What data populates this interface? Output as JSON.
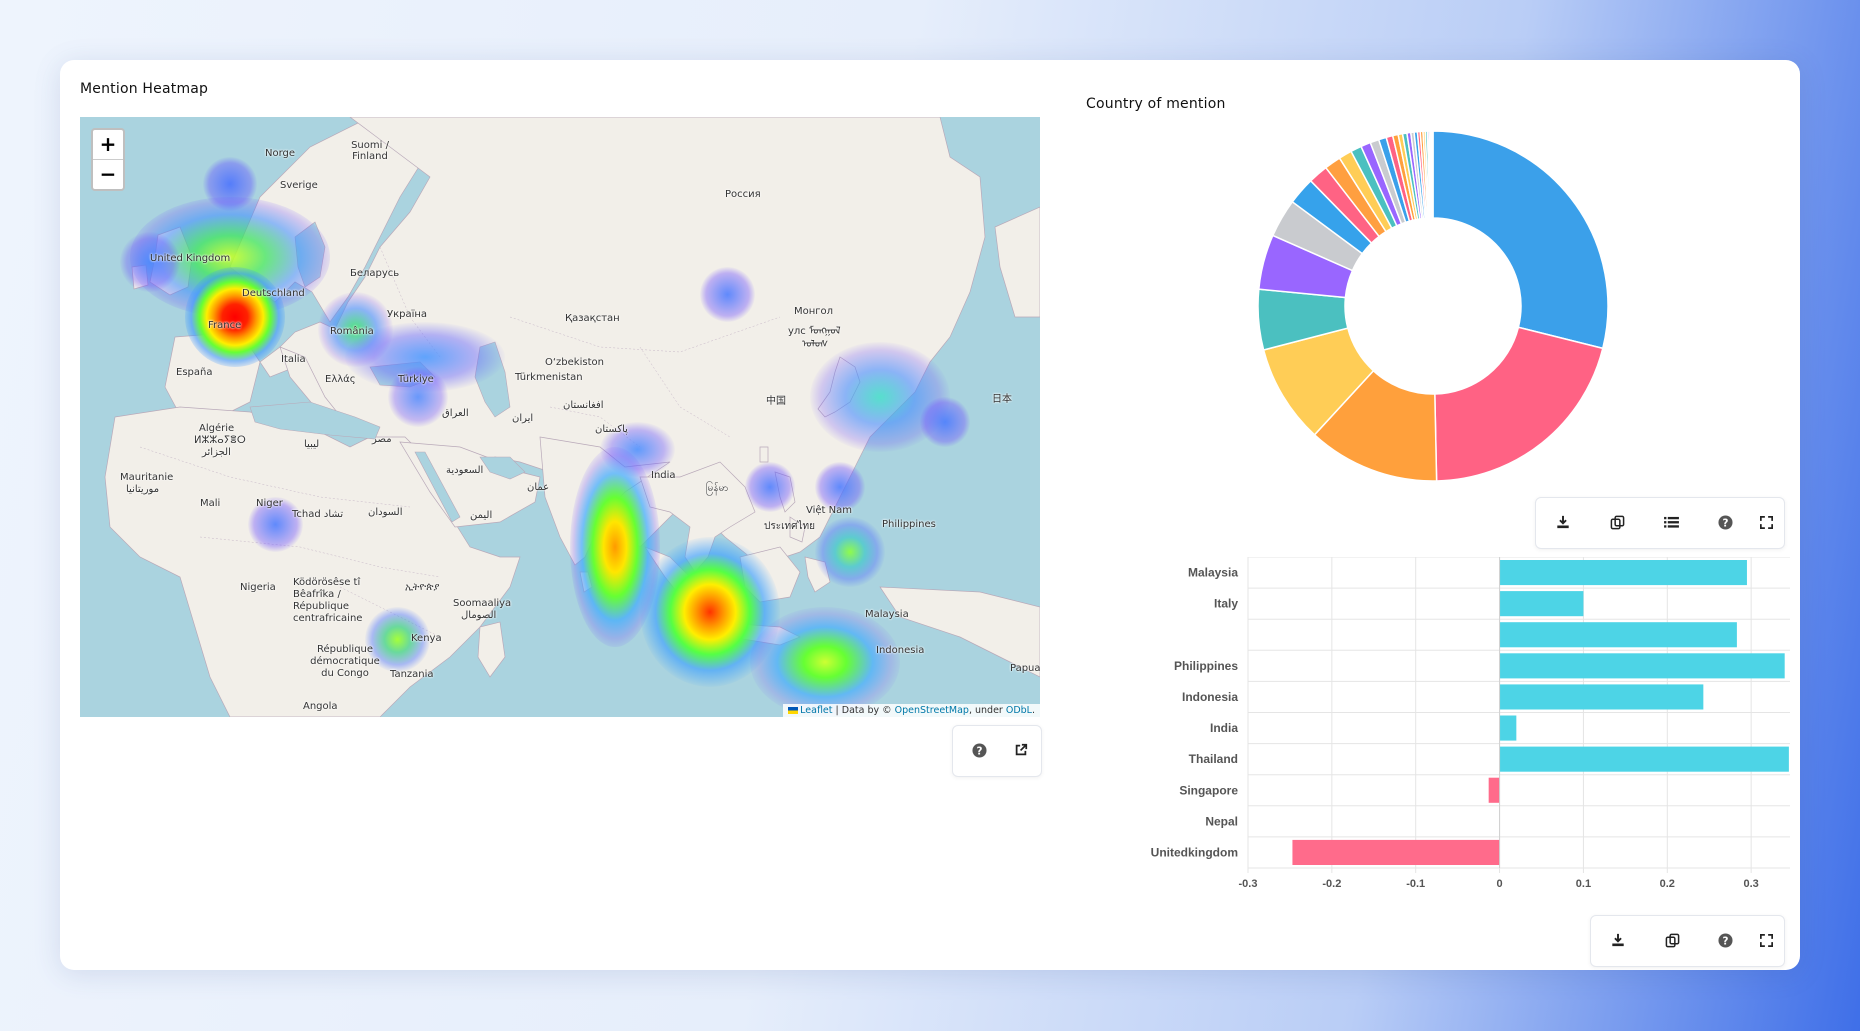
{
  "heatmap": {
    "title": "Mention Heatmap",
    "zoom_in_label": "+",
    "zoom_out_label": "−",
    "attribution": {
      "leaflet": "Leaflet",
      "data_by": " | Data by © ",
      "osm": "OpenStreetMap",
      "under": ", under ",
      "odbl": "ODbL",
      "end": "."
    },
    "place_labels": [
      "Norge",
      "Suomi / Finland",
      "Sverige",
      "Россия",
      "United Kingdom",
      "Беларусь",
      "Deutschland",
      "Україна",
      "France",
      "România",
      "Қазақстан",
      "Монгол",
      "улс ᠮᠣᠩᠭᠣᠯ",
      "ᠤᠯᠤᠰ",
      "España",
      "Italia",
      "Türkiye",
      "Ελλάς",
      "O‘zbekiston",
      "Türkmenistan",
      "中国",
      "日本",
      "Algérie",
      "ⵍⵣⵣⴰⵢⴻⵔ",
      "الجزائر",
      "ليبيا",
      "مصر",
      "العراق",
      "ایران",
      "افغانستان",
      "پاکستان",
      "India",
      "မြန်မာ",
      "Việt Nam",
      "Mauritanie",
      "موريتانيا",
      "Mali",
      "Niger",
      "Tchad تشاد",
      "السودان",
      "السعودية",
      "عمان",
      "اليمن",
      "Philippines",
      "ประเทศไทย",
      "Malaysia",
      "Indonesia",
      "Nigeria",
      "Ködörösêse tî Bêafrîka / République centrafricaine",
      "ኢትዮጵያ",
      "Soomaaliya",
      "الصومال",
      "Kenya",
      "République démocratique du Congo",
      "Tanzania",
      "Papua",
      "Angola"
    ]
  },
  "donut": {
    "title": "Country of mention",
    "colors": [
      "#3ba0ea",
      "#ff6284",
      "#ffa03c",
      "#ffcd56",
      "#4bc0c0",
      "#9966ff",
      "#c9cbcf",
      "#36a2eb",
      "#ff6384",
      "#ff9f40",
      "#ffcd56",
      "#4bc0c0",
      "#9966ff",
      "#c9cbcf"
    ]
  },
  "chart_data": [
    {
      "type": "pie",
      "title": "Country of mention",
      "values": [
        28.5,
        20.5,
        12,
        9,
        5.5,
        5,
        3.5,
        2.5,
        1.8,
        1.5,
        1.2,
        1.0,
        0.9,
        0.8,
        0.7,
        0.6,
        0.5,
        0.4,
        0.4,
        0.35,
        0.3,
        0.3,
        0.25,
        0.25,
        0.2,
        0.2,
        0.15,
        0.15,
        0.1,
        0.1
      ]
    },
    {
      "type": "bar",
      "orientation": "horizontal",
      "categories": [
        "Malaysia",
        "Italy",
        "",
        "Philippines",
        "Indonesia",
        "India",
        "Thailand",
        "Singapore",
        "Nepal",
        "Unitedkingdom"
      ],
      "values": [
        0.295,
        0.1,
        0.283,
        0.34,
        0.243,
        0.02,
        0.345,
        -0.013,
        0,
        -0.247
      ],
      "xlim": [
        -0.3,
        0.4
      ],
      "xticks": [
        "-0.3",
        "-0.2",
        "-0.1",
        "0",
        "0.1",
        "0.2",
        "0.3",
        "0.4"
      ],
      "positive_color": "#4dd4e6",
      "negative_color": "#ff6b8b",
      "grid": true
    }
  ]
}
